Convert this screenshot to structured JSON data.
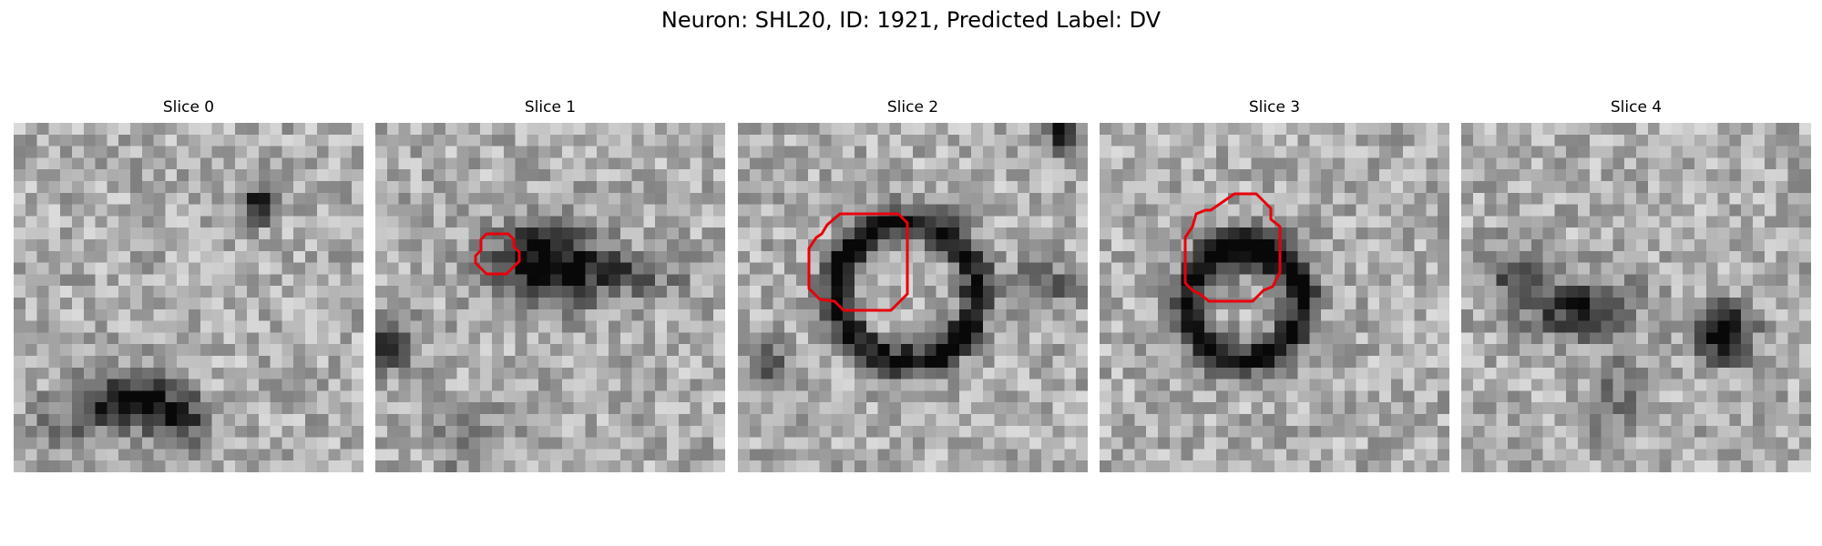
{
  "figure": {
    "title": "Neuron: SHL20, ID: 1921, Predicted Label: DV",
    "colormap": "grayscale",
    "contour_color": "#e8000b"
  },
  "slices": [
    {
      "title": "Slice 0"
    },
    {
      "title": "Slice 1"
    },
    {
      "title": "Slice 2"
    },
    {
      "title": "Slice 3"
    },
    {
      "title": "Slice 4"
    }
  ]
}
